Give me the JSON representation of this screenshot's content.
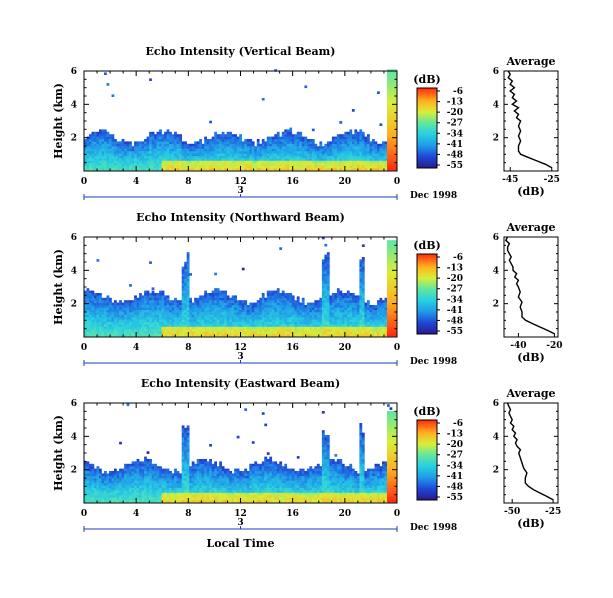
{
  "chart_data": [
    {
      "type": "heatmap",
      "title": "Echo Intensity (Vertical Beam)",
      "ylabel": "Height (km)",
      "xlabel": "",
      "x_ticks": [
        "0",
        "4",
        "8",
        "12",
        "16",
        "20",
        "0"
      ],
      "y_ticks": [
        "2",
        "4",
        "6"
      ],
      "date_axis_tick": "3",
      "date_label": "Dec 1998",
      "xlim_hours": [
        0,
        24
      ],
      "ylim_km": [
        0,
        6
      ],
      "colorbar": {
        "label": "(dB)",
        "ticks": [
          "-6",
          "-13",
          "-20",
          "-27",
          "-34",
          "-41",
          "-48",
          "-55"
        ]
      },
      "profile_model": {
        "base_height_km": 1.8,
        "top_height_km": 2.4,
        "late_plume_height_km": 6.0
      },
      "average": {
        "title": "Average",
        "xlabel": "(dB)",
        "x_ticks": [
          "-45",
          "-25"
        ],
        "y_ticks": [
          "2",
          "4",
          "6"
        ],
        "xlim": [
          -48,
          -22
        ],
        "ylim": [
          0,
          6
        ],
        "points": [
          [
            -25,
            0.2
          ],
          [
            -28,
            0.4
          ],
          [
            -32,
            0.6
          ],
          [
            -36,
            0.8
          ],
          [
            -40,
            1.0
          ],
          [
            -41,
            1.2
          ],
          [
            -41,
            1.5
          ],
          [
            -40,
            1.8
          ],
          [
            -41,
            2.1
          ],
          [
            -40,
            2.4
          ],
          [
            -41,
            2.7
          ],
          [
            -40,
            3.0
          ],
          [
            -42,
            3.2
          ],
          [
            -41,
            3.4
          ],
          [
            -43,
            3.6
          ],
          [
            -41,
            3.8
          ],
          [
            -44,
            4.0
          ],
          [
            -42,
            4.2
          ],
          [
            -44,
            4.4
          ],
          [
            -43,
            4.6
          ],
          [
            -45,
            4.8
          ],
          [
            -43,
            5.0
          ],
          [
            -45,
            5.2
          ],
          [
            -44,
            5.4
          ],
          [
            -46,
            5.6
          ],
          [
            -45,
            5.8
          ],
          [
            -46,
            6.0
          ]
        ]
      }
    },
    {
      "type": "heatmap",
      "title": "Echo Intensity (Northward Beam)",
      "ylabel": "Height (km)",
      "xlabel": "",
      "x_ticks": [
        "0",
        "4",
        "8",
        "12",
        "16",
        "20",
        "0"
      ],
      "y_ticks": [
        "2",
        "4",
        "6"
      ],
      "date_axis_tick": "3",
      "date_label": "Dec 1998",
      "xlim_hours": [
        0,
        24
      ],
      "ylim_km": [
        0,
        6
      ],
      "colorbar": {
        "label": "(dB)",
        "ticks": [
          "-6",
          "-13",
          "-20",
          "-27",
          "-34",
          "-41",
          "-48",
          "-55"
        ]
      },
      "profile_model": {
        "base_height_km": 2.2,
        "top_height_km": 3.0,
        "late_plume_height_km": 5.8
      },
      "average": {
        "title": "Average",
        "xlabel": "(dB)",
        "x_ticks": [
          "-40",
          "-20"
        ],
        "y_ticks": [
          "2",
          "4",
          "6"
        ],
        "xlim": [
          -48,
          -18
        ],
        "ylim": [
          0,
          6
        ],
        "points": [
          [
            -20,
            0.2
          ],
          [
            -24,
            0.4
          ],
          [
            -28,
            0.6
          ],
          [
            -32,
            0.8
          ],
          [
            -36,
            1.0
          ],
          [
            -38,
            1.2
          ],
          [
            -38,
            1.5
          ],
          [
            -39,
            1.8
          ],
          [
            -38,
            2.1
          ],
          [
            -40,
            2.4
          ],
          [
            -39,
            2.7
          ],
          [
            -40,
            3.0
          ],
          [
            -41,
            3.2
          ],
          [
            -40,
            3.4
          ],
          [
            -42,
            3.6
          ],
          [
            -41,
            3.8
          ],
          [
            -43,
            4.0
          ],
          [
            -43,
            4.2
          ],
          [
            -44,
            4.4
          ],
          [
            -45,
            4.6
          ],
          [
            -44,
            4.8
          ],
          [
            -45,
            5.0
          ],
          [
            -46,
            5.2
          ],
          [
            -46,
            5.4
          ],
          [
            -45,
            5.6
          ],
          [
            -47,
            5.8
          ],
          [
            -46,
            6.0
          ]
        ]
      }
    },
    {
      "type": "heatmap",
      "title": "Echo Intensity (Eastward Beam)",
      "ylabel": "Height (km)",
      "xlabel": "Local Time",
      "x_ticks": [
        "0",
        "4",
        "8",
        "12",
        "16",
        "20",
        "0"
      ],
      "y_ticks": [
        "2",
        "4",
        "6"
      ],
      "date_axis_tick": "3",
      "date_label": "Dec 1998",
      "xlim_hours": [
        0,
        24
      ],
      "ylim_km": [
        0,
        6
      ],
      "colorbar": {
        "label": "(dB)",
        "ticks": [
          "-6",
          "-13",
          "-20",
          "-27",
          "-34",
          "-41",
          "-48",
          "-55"
        ]
      },
      "profile_model": {
        "base_height_km": 2.0,
        "top_height_km": 2.8,
        "late_plume_height_km": 5.5
      },
      "average": {
        "title": "Average",
        "xlabel": "(dB)",
        "x_ticks": [
          "-50",
          "-25"
        ],
        "y_ticks": [
          "2",
          "4",
          "6"
        ],
        "xlim": [
          -55,
          -22
        ],
        "ylim": [
          0,
          6
        ],
        "points": [
          [
            -25,
            0.2
          ],
          [
            -29,
            0.4
          ],
          [
            -33,
            0.6
          ],
          [
            -37,
            0.8
          ],
          [
            -40,
            1.0
          ],
          [
            -42,
            1.2
          ],
          [
            -42,
            1.5
          ],
          [
            -41,
            1.8
          ],
          [
            -43,
            2.1
          ],
          [
            -44,
            2.4
          ],
          [
            -45,
            2.7
          ],
          [
            -46,
            3.0
          ],
          [
            -45,
            3.2
          ],
          [
            -47,
            3.4
          ],
          [
            -48,
            3.6
          ],
          [
            -47,
            3.8
          ],
          [
            -49,
            4.0
          ],
          [
            -48,
            4.2
          ],
          [
            -50,
            4.4
          ],
          [
            -49,
            4.6
          ],
          [
            -51,
            4.8
          ],
          [
            -50,
            5.0
          ],
          [
            -51,
            5.2
          ],
          [
            -52,
            5.4
          ],
          [
            -51,
            5.6
          ],
          [
            -52,
            5.8
          ],
          [
            -53,
            6.0
          ]
        ]
      }
    }
  ]
}
